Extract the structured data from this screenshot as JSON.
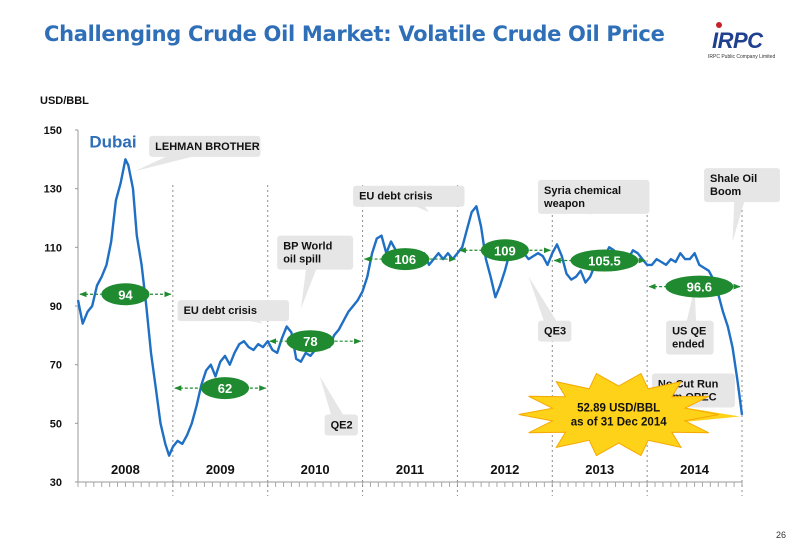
{
  "slide": {
    "title": "Challenging Crude Oil Market: Volatile Crude Oil Price",
    "page_number": "26"
  },
  "logo": {
    "mark": "IRPC",
    "subtitle": "IRPC Public Company Limited",
    "colors": {
      "primary": "#1f3f8f",
      "accent": "#c8202a"
    }
  },
  "colors": {
    "title": "#2e6fb7",
    "series_line": "#1f6fc4",
    "series_label": "#2e6fb7",
    "avg_badge_fill": "#1f8a2f",
    "avg_badge_text": "#ffffff",
    "avg_arrow": "#1f8a2f",
    "callout_fill": "#e6e6e6",
    "callout_text": "#111111",
    "star_fill": "#ffd21a",
    "star_stroke": "#f5a800",
    "year_divider": "#8c8c8c"
  },
  "chart_data": {
    "type": "line",
    "title": "",
    "xlabel": "",
    "ylabel": "USD/BBL",
    "ylim": [
      30,
      150
    ],
    "yticks": [
      30,
      50,
      70,
      90,
      110,
      130,
      150
    ],
    "xlim": [
      2008.0,
      2015.0
    ],
    "grid": false,
    "series": [
      {
        "name": "Dubai",
        "x": [
          2008.0,
          2008.05,
          2008.1,
          2008.15,
          2008.2,
          2008.25,
          2008.3,
          2008.35,
          2008.4,
          2008.45,
          2008.5,
          2008.53,
          2008.58,
          2008.62,
          2008.67,
          2008.72,
          2008.77,
          2008.82,
          2008.87,
          2008.92,
          2008.96,
          2009.0,
          2009.05,
          2009.1,
          2009.15,
          2009.2,
          2009.25,
          2009.3,
          2009.35,
          2009.4,
          2009.45,
          2009.5,
          2009.55,
          2009.6,
          2009.65,
          2009.7,
          2009.75,
          2009.8,
          2009.85,
          2009.9,
          2009.95,
          2010.0,
          2010.05,
          2010.1,
          2010.15,
          2010.2,
          2010.25,
          2010.3,
          2010.35,
          2010.4,
          2010.45,
          2010.5,
          2010.55,
          2010.6,
          2010.65,
          2010.7,
          2010.75,
          2010.8,
          2010.85,
          2010.9,
          2010.95,
          2011.0,
          2011.05,
          2011.1,
          2011.15,
          2011.2,
          2011.25,
          2011.3,
          2011.35,
          2011.4,
          2011.45,
          2011.5,
          2011.55,
          2011.6,
          2011.65,
          2011.7,
          2011.75,
          2011.8,
          2011.85,
          2011.9,
          2011.95,
          2012.0,
          2012.05,
          2012.1,
          2012.15,
          2012.2,
          2012.25,
          2012.3,
          2012.35,
          2012.4,
          2012.45,
          2012.5,
          2012.55,
          2012.6,
          2012.65,
          2012.7,
          2012.75,
          2012.8,
          2012.85,
          2012.9,
          2012.95,
          2013.0,
          2013.05,
          2013.1,
          2013.15,
          2013.2,
          2013.25,
          2013.3,
          2013.35,
          2013.4,
          2013.45,
          2013.5,
          2013.55,
          2013.6,
          2013.65,
          2013.7,
          2013.75,
          2013.8,
          2013.85,
          2013.9,
          2013.95,
          2014.0,
          2014.05,
          2014.1,
          2014.15,
          2014.2,
          2014.25,
          2014.3,
          2014.35,
          2014.4,
          2014.45,
          2014.5,
          2014.55,
          2014.6,
          2014.65,
          2014.7,
          2014.75,
          2014.8,
          2014.85,
          2014.9,
          2014.95,
          2015.0
        ],
        "y": [
          92,
          84,
          88,
          90,
          97,
          100,
          104,
          112,
          126,
          132,
          140,
          138,
          130,
          114,
          104,
          90,
          74,
          62,
          50,
          43,
          39,
          42,
          44,
          43,
          46,
          50,
          56,
          63,
          68,
          70,
          66,
          71,
          73,
          70,
          74,
          77,
          78,
          76,
          75,
          77,
          76,
          78,
          75,
          74,
          79,
          83,
          81,
          72,
          71,
          74,
          73,
          75,
          77,
          79,
          76,
          80,
          82,
          85,
          88,
          90,
          92,
          95,
          100,
          108,
          113,
          114,
          108,
          112,
          109,
          106,
          107,
          108,
          105,
          104,
          108,
          104,
          106,
          108,
          106,
          108,
          106,
          108,
          110,
          116,
          122,
          124,
          117,
          106,
          100,
          93,
          97,
          102,
          108,
          110,
          109,
          108,
          106,
          107,
          108,
          107,
          104,
          108,
          111,
          107,
          101,
          99,
          100,
          102,
          98,
          100,
          104,
          106,
          107,
          110,
          109,
          106,
          107,
          106,
          109,
          108,
          106,
          104,
          104,
          106,
          105,
          104,
          106,
          105,
          108,
          106,
          106,
          108,
          104,
          103,
          102,
          99,
          94,
          88,
          83,
          76,
          65,
          52.89
        ]
      }
    ],
    "x_tick_labels": [
      {
        "label": "2008",
        "x": 2008.5
      },
      {
        "label": "2009",
        "x": 2009.5
      },
      {
        "label": "2010",
        "x": 2010.5
      },
      {
        "label": "2011",
        "x": 2011.5
      },
      {
        "label": "2012",
        "x": 2012.5
      },
      {
        "label": "2013",
        "x": 2013.5
      },
      {
        "label": "2014",
        "x": 2014.5
      }
    ],
    "year_boundaries": [
      2009.0,
      2010.0,
      2011.0,
      2012.0,
      2013.0,
      2014.0,
      2015.0
    ],
    "series_label": {
      "text": "Dubai",
      "x": 2008.12,
      "y": 145
    },
    "averages": [
      {
        "label": "94",
        "value": 94,
        "from": 2008.0,
        "to": 2009.0,
        "badge_x": 2008.5
      },
      {
        "label": "62",
        "value": 62,
        "from": 2009.0,
        "to": 2010.0,
        "badge_x": 2009.55
      },
      {
        "label": "78",
        "value": 78,
        "from": 2010.0,
        "to": 2011.0,
        "badge_x": 2010.45
      },
      {
        "label": "106",
        "value": 106,
        "from": 2011.0,
        "to": 2012.0,
        "badge_x": 2011.45
      },
      {
        "label": "109",
        "value": 109,
        "from": 2012.0,
        "to": 2013.0,
        "badge_x": 2012.5
      },
      {
        "label": "105.5",
        "value": 105.5,
        "from": 2013.0,
        "to": 2014.0,
        "badge_x": 2013.55
      },
      {
        "label": "96.6",
        "value": 96.6,
        "from": 2014.0,
        "to": 2015.0,
        "badge_x": 2014.55
      }
    ],
    "annotations": [
      {
        "text": [
          "LEHMAN BROTHER"
        ],
        "x": 2008.75,
        "y": 148,
        "point_x": 2008.6,
        "point_y": 136
      },
      {
        "text": [
          "EU debt crisis"
        ],
        "x": 2009.05,
        "y": 92,
        "point_x": 2009.95,
        "point_y": 84
      },
      {
        "text": [
          "BP World",
          "oil spill"
        ],
        "x": 2010.1,
        "y": 114,
        "point_x": 2010.35,
        "point_y": 89
      },
      {
        "text": [
          "QE2"
        ],
        "x": 2010.6,
        "y": 53,
        "point_x": 2010.55,
        "point_y": 66
      },
      {
        "text": [
          "EU debt crisis"
        ],
        "x": 2010.9,
        "y": 131,
        "point_x": 2011.7,
        "point_y": 122
      },
      {
        "text": [
          "Syria chemical",
          "weapon"
        ],
        "x": 2012.85,
        "y": 133,
        "point_x": 2013.4,
        "point_y": 121
      },
      {
        "text": [
          "QE3"
        ],
        "x": 2012.85,
        "y": 85,
        "point_x": 2012.75,
        "point_y": 100
      },
      {
        "text": [
          "Shale Oil",
          "Boom"
        ],
        "x": 2014.6,
        "y": 137,
        "point_x": 2014.9,
        "point_y": 112
      },
      {
        "text": [
          "US QE",
          "ended"
        ],
        "x": 2014.2,
        "y": 85,
        "point_x": 2014.5,
        "point_y": 96
      },
      {
        "text": [
          "No Cut Run",
          "from OPEC"
        ],
        "x": 2014.05,
        "y": 67,
        "point_x": 2014.9,
        "point_y": 64
      }
    ],
    "highlight": {
      "text": [
        "52.89 USD/BBL",
        "as of 31 Dec 2014"
      ],
      "cx": 2013.7,
      "cy": 53,
      "point_x": 2015.0,
      "point_y": 53
    }
  }
}
